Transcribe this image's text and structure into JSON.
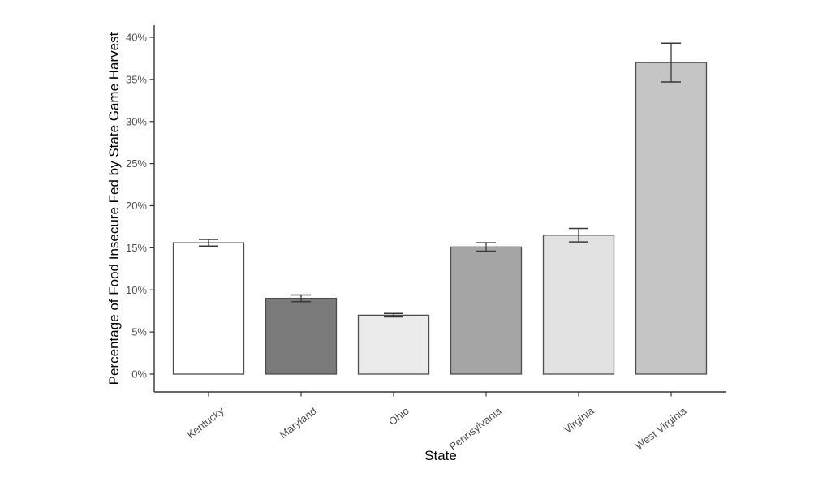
{
  "figure": {
    "background_color": "#ffffff"
  },
  "chart_data": {
    "type": "bar",
    "title": "",
    "xlabel": "State",
    "ylabel": "Percentage of Food Insecure Fed by State Game Harvest",
    "categories": [
      "Kentucky",
      "Maryland",
      "Ohio",
      "Pennsylvania",
      "Virginia",
      "West Virginia"
    ],
    "values": [
      15.6,
      9.0,
      7.0,
      15.1,
      16.5,
      37.0
    ],
    "error_bars": [
      0.4,
      0.4,
      0.2,
      0.5,
      0.8,
      2.3
    ],
    "bar_colors": [
      "#ffffff",
      "#7a7a7a",
      "#ebebeb",
      "#a5a5a5",
      "#e2e2e2",
      "#c5c5c5"
    ],
    "bar_border_color": "#4d4d4d",
    "error_bar_color": "#383838",
    "axis_line_color": "#333333",
    "tick_label_color": "#4d4d4d",
    "axis_title_color": "#000000",
    "ylim": [
      0,
      40
    ],
    "yticks": [
      0,
      5,
      10,
      15,
      20,
      25,
      30,
      35,
      40
    ],
    "ytick_labels": [
      "0%",
      "5%",
      "10%",
      "15%",
      "20%",
      "25%",
      "30%",
      "35%",
      "40%"
    ],
    "grid": false,
    "legend": false
  }
}
